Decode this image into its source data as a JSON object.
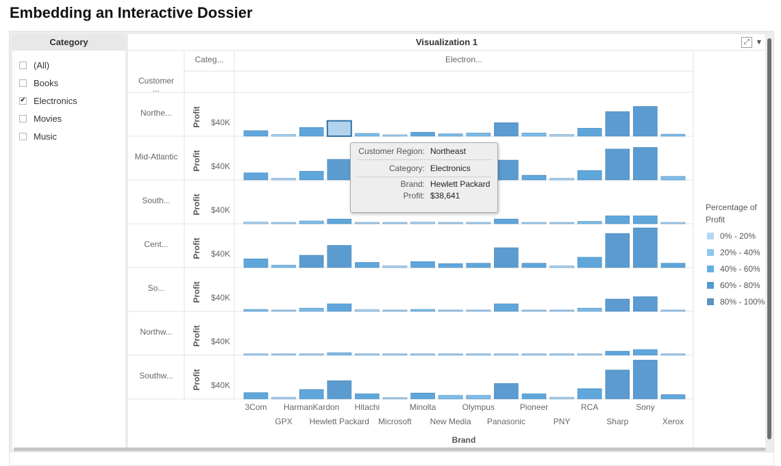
{
  "page": {
    "title": "Embedding an Interactive Dossier"
  },
  "filter": {
    "header": "Category",
    "items": [
      {
        "label": "(All)",
        "checked": false
      },
      {
        "label": "Books",
        "checked": false
      },
      {
        "label": "Electronics",
        "checked": true
      },
      {
        "label": "Movies",
        "checked": false
      },
      {
        "label": "Music",
        "checked": false
      }
    ]
  },
  "viz": {
    "title": "Visualization 1",
    "expand_icon": "expand-icon",
    "menu_icon": "chevron-down-icon",
    "column_header_category": "Categ...",
    "column_header_value": "Electron...",
    "row_header_customer": "Customer ...",
    "x_axis_title": "Brand",
    "y_axis_label": "Profit",
    "y_tick_label": "$40K"
  },
  "tooltip": {
    "rows": [
      {
        "key": "Customer Region:",
        "value": "Northeast"
      },
      {
        "key": "Category:",
        "value": "Electronics"
      },
      {
        "key": "Brand:",
        "value": "Hewlett Packard"
      },
      {
        "key": "Profit:",
        "value": "$38,641"
      }
    ]
  },
  "legend": {
    "title": "Percentage of Profit",
    "items": [
      {
        "label": "0% - 20%",
        "color": "#b3d7f2"
      },
      {
        "label": "20% - 40%",
        "color": "#8ec8f0"
      },
      {
        "label": "40% - 60%",
        "color": "#60b1e6"
      },
      {
        "label": "60% - 80%",
        "color": "#4f9bd2"
      },
      {
        "label": "80% - 100%",
        "color": "#5b93c3"
      }
    ]
  },
  "chart_data": {
    "type": "bar",
    "xlabel": "Brand",
    "ylabel": "Profit",
    "facet_column": "Electronics",
    "highlighted": {
      "region": "Northeast",
      "brand": "Hewlett Packard"
    },
    "categories": [
      "3Com",
      "GPX",
      "HarmanKardon",
      "Hewlett Packard",
      "Hitachi",
      "Microsoft",
      "Minolta",
      "New Media",
      "Olympus",
      "Panasonic",
      "Pioneer",
      "PNY",
      "RCA",
      "Sharp",
      "Sony",
      "Xerox"
    ],
    "series": [
      {
        "name": "Northe...",
        "values": [
          14000,
          4000,
          22000,
          38641,
          7000,
          3000,
          10000,
          6000,
          8000,
          34000,
          8000,
          4000,
          20000,
          62000,
          75000,
          5000
        ]
      },
      {
        "name": "Mid-Atlantic",
        "values": [
          18000,
          4000,
          22000,
          52000,
          8000,
          3000,
          9000,
          6000,
          7000,
          50000,
          12000,
          4000,
          24000,
          78000,
          82000,
          9000
        ]
      },
      {
        "name": "South...",
        "values": [
          4000,
          2000,
          7000,
          12000,
          3000,
          2000,
          4000,
          3000,
          3000,
          12000,
          3000,
          2000,
          6000,
          20000,
          20000,
          2000
        ]
      },
      {
        "name": "Cent...",
        "values": [
          22000,
          6000,
          31000,
          56000,
          13000,
          4000,
          15000,
          10000,
          11000,
          50000,
          11000,
          4000,
          26000,
          86000,
          100000,
          11000
        ]
      },
      {
        "name": "So...",
        "values": [
          5000,
          2000,
          8000,
          19000,
          4000,
          2000,
          5000,
          3000,
          3000,
          19000,
          3000,
          2000,
          8000,
          31000,
          37000,
          3000
        ]
      },
      {
        "name": "Northw...",
        "values": [
          3000,
          2000,
          3000,
          6000,
          2000,
          2000,
          2000,
          2000,
          2000,
          3000,
          2000,
          2000,
          3000,
          10000,
          14000,
          2000
        ]
      },
      {
        "name": "Southw...",
        "values": [
          16000,
          4000,
          24000,
          46000,
          13000,
          3000,
          15000,
          9000,
          9000,
          39000,
          13000,
          4000,
          26000,
          73000,
          98000,
          11000
        ]
      }
    ],
    "y_ticks": [
      "$40K"
    ]
  }
}
